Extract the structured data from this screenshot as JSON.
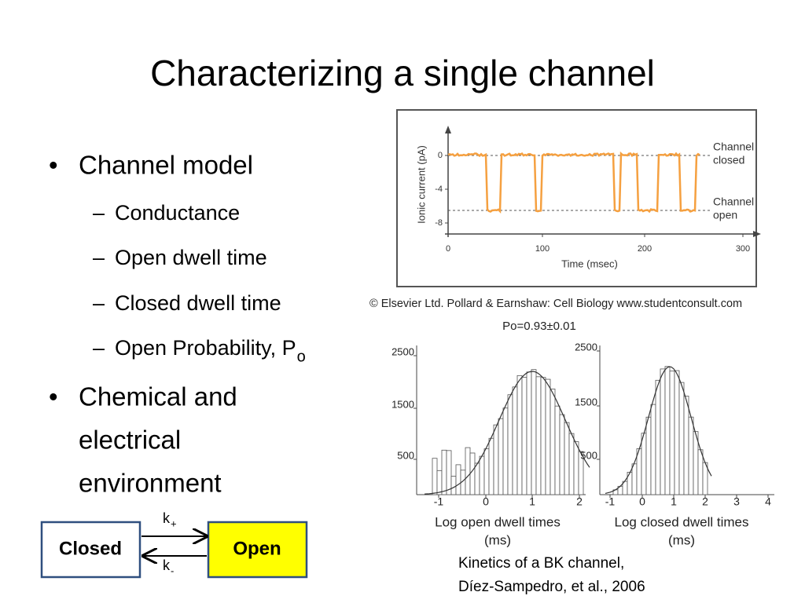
{
  "title": "Characterizing a single channel",
  "bullet_marker": "•",
  "sub_marker": "–",
  "bullets": [
    {
      "text": "Channel model",
      "subitems": [
        {
          "text": "Conductance"
        },
        {
          "text": "Open dwell time"
        },
        {
          "text": "Closed dwell time"
        },
        {
          "text": "Open Probability, P",
          "subscript": "o"
        }
      ]
    },
    {
      "lines": [
        "Chemical and",
        "electrical",
        "environment"
      ]
    }
  ],
  "diagram": {
    "states": [
      "Closed",
      "Open"
    ],
    "rates": [
      {
        "symbol": "k",
        "subscript": "+"
      },
      {
        "symbol": "k",
        "subscript": "-"
      }
    ]
  },
  "trace_figure": {
    "y_axis_label": "Ionic current (pA)",
    "y_ticks": [
      "0",
      "-4",
      "-8"
    ],
    "x_ticks": [
      "0",
      "100",
      "200",
      "300"
    ],
    "x_axis_label": "Time (msec)",
    "annotations": [
      [
        "Channel",
        "closed"
      ],
      [
        "Channel",
        "open"
      ]
    ],
    "credit": "© Elsevier Ltd. Pollard & Earnshaw: Cell Biology www.studentconsult.com"
  },
  "histogram_figure": {
    "po": "Po=0.93±0.01",
    "panels": [
      {
        "y_ticks": [
          "2500",
          "1500",
          "500"
        ],
        "x_ticks": [
          "-1",
          "0",
          "1",
          "2"
        ],
        "x_axis_label": [
          "Log open dwell times",
          "(ms)"
        ]
      },
      {
        "y_ticks": [
          "2500",
          "1500",
          "500"
        ],
        "x_ticks": [
          "-1",
          "0",
          "1",
          "2",
          "3",
          "4"
        ],
        "x_axis_label": [
          "Log closed  dwell times",
          "(ms)"
        ]
      }
    ],
    "caption": [
      "Kinetics of a BK channel,",
      "Díez-Sampedro, et al., 2006"
    ]
  }
}
